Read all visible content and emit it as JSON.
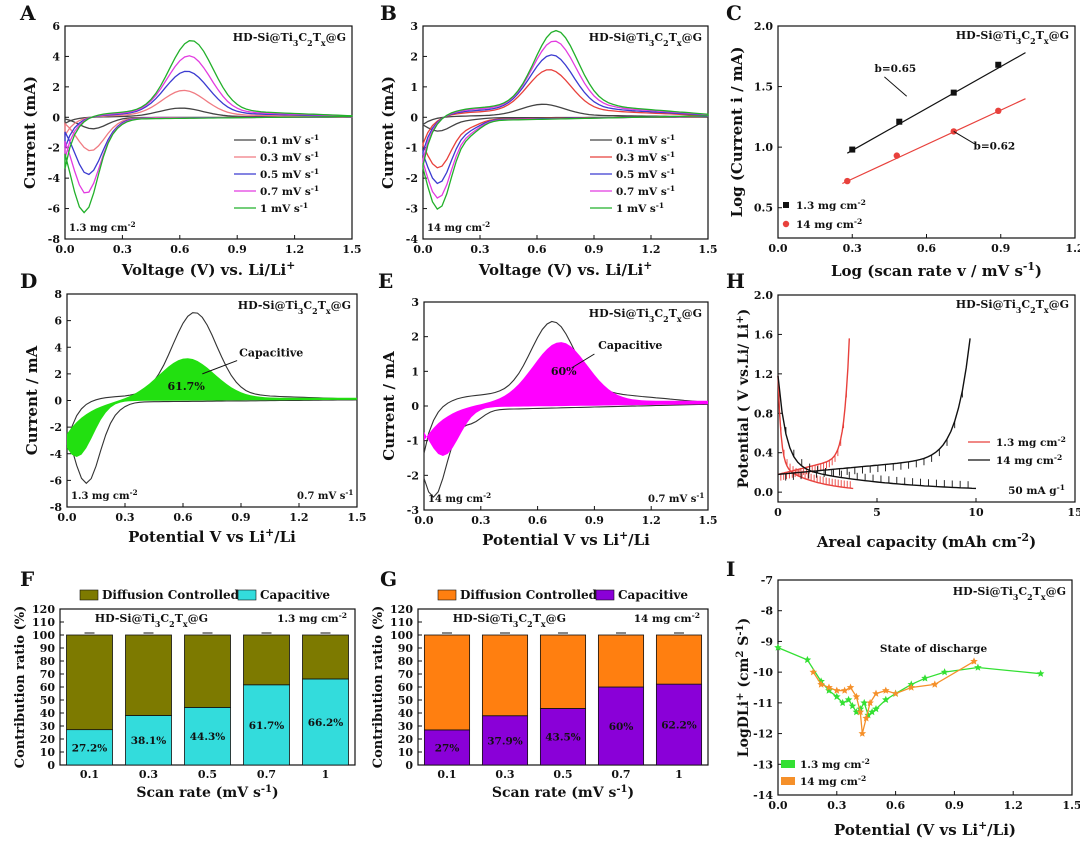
{
  "panel_letters": [
    "A",
    "B",
    "C",
    "D",
    "E",
    "H",
    "F",
    "G",
    "I"
  ],
  "colors": {
    "black": "#333333",
    "red": "#e8413c",
    "gray": "#444444",
    "pink": "#f07b82",
    "blue": "#3b3bd0",
    "magenta": "#e23be0",
    "green": "#22b02a",
    "fill_green": "#22e010",
    "fill_magenta": "#ff00ff",
    "olive": "#7d7a00",
    "cyan": "#33dcdc",
    "orange": "#ff7f10",
    "purple": "#8a00d8",
    "lime": "#33e033",
    "orange2": "#f5902a"
  },
  "chart_data": [
    {
      "id": "A",
      "type": "line",
      "title": "HD-Si@Ti3C2Tx@G",
      "annotation": "1.3 mg cm-2",
      "xlabel": "Voltage (V) vs. Li/Li+",
      "ylabel": "Current (mA)",
      "xlim": [
        0,
        1.5
      ],
      "ylim": [
        -8,
        6
      ],
      "xticks": [
        0.0,
        0.3,
        0.6,
        0.9,
        1.2,
        1.5
      ],
      "yticks": [
        -8,
        -6,
        -4,
        -2,
        0,
        2,
        4,
        6
      ],
      "xtick_labels": [
        "0.0",
        "0.3",
        "0.6",
        "0.9",
        "1.2",
        "1.5"
      ],
      "ytick_labels": [
        "-8",
        "-6",
        "-4",
        "-2",
        "0",
        "2",
        "4",
        "6"
      ],
      "series": [
        {
          "name": "0.1 mV s-1",
          "color": "#444444",
          "scale": 0.12
        },
        {
          "name": "0.3 mV s-1",
          "color": "#f07b82",
          "scale": 0.35
        },
        {
          "name": "0.5 mV s-1",
          "color": "#3b3bd0",
          "scale": 0.6
        },
        {
          "name": "0.7 mV s-1",
          "color": "#e23be0",
          "scale": 0.8
        },
        {
          "name": "1 mV s-1",
          "color": "#22b02a",
          "scale": 1.0
        }
      ],
      "peak_anodic": [
        0.65,
        4.7
      ],
      "peak_cathodic": [
        0.02,
        -6.8
      ]
    },
    {
      "id": "B",
      "type": "line",
      "title": "HD-Si@Ti3C2Tx@G",
      "annotation": "14 mg cm-2",
      "xlabel": "Voltage (V) vs. Li/Li+",
      "ylabel": "Current (mA)",
      "xlim": [
        0,
        1.5
      ],
      "ylim": [
        -4,
        3
      ],
      "xticks": [
        0.0,
        0.3,
        0.6,
        0.9,
        1.2,
        1.5
      ],
      "yticks": [
        -4,
        -3,
        -2,
        -1,
        0,
        1,
        2,
        3
      ],
      "xtick_labels": [
        "0.0",
        "0.3",
        "0.6",
        "0.9",
        "1.2",
        "1.5"
      ],
      "ytick_labels": [
        "-4",
        "-3",
        "-2",
        "-1",
        "0",
        "1",
        "2",
        "3"
      ],
      "series": [
        {
          "name": "0.1 mV s-1",
          "color": "#444444",
          "scale": 0.15
        },
        {
          "name": "0.3 mV s-1",
          "color": "#e8413c",
          "scale": 0.55
        },
        {
          "name": "0.5 mV s-1",
          "color": "#3b3bd0",
          "scale": 0.72
        },
        {
          "name": "0.7 mV s-1",
          "color": "#e23be0",
          "scale": 0.88
        },
        {
          "name": "1 mV s-1",
          "color": "#22b02a",
          "scale": 1.0
        }
      ],
      "peak_anodic": [
        0.7,
        2.5
      ],
      "peak_cathodic": [
        0.05,
        -3.2
      ]
    },
    {
      "id": "C",
      "type": "scatter",
      "title": "HD-Si@Ti3C2Tx@G",
      "xlabel": "Log (scan rate v / mV s-1)",
      "ylabel": "Log (Current i / mA)",
      "xlim": [
        0,
        1.2
      ],
      "ylim": [
        0.25,
        2.0
      ],
      "xticks": [
        0.0,
        0.3,
        0.6,
        0.9,
        1.2
      ],
      "yticks": [
        0.5,
        1.0,
        1.5,
        2.0
      ],
      "xtick_labels": [
        "0.0",
        "0.3",
        "0.6",
        "0.9",
        "1.2"
      ],
      "ytick_labels": [
        "0.5",
        "1.0",
        "1.5",
        "2.0"
      ],
      "series": [
        {
          "name": "1.3 mg cm-2",
          "color": "#111111",
          "x": [
            0.3,
            0.49,
            0.71,
            0.89
          ],
          "y": [
            0.98,
            1.21,
            1.45,
            1.68
          ],
          "fit": {
            "x0": 0.28,
            "x1": 1.0,
            "y0": 0.95,
            "y1": 1.78
          },
          "slope_label": "b=0.65"
        },
        {
          "name": "14 mg cm-2",
          "color": "#e8413c",
          "x": [
            0.28,
            0.48,
            0.71,
            0.89
          ],
          "y": [
            0.72,
            0.93,
            1.13,
            1.3
          ],
          "fit": {
            "x0": 0.26,
            "x1": 1.0,
            "y0": 0.7,
            "y1": 1.4
          },
          "slope_label": "b=0.62"
        }
      ]
    },
    {
      "id": "D",
      "type": "area",
      "title": "HD-Si@Ti3C2Tx@G",
      "annotation": "1.3 mg cm-2",
      "rate_label": "0.7 mV s-1",
      "xlabel": "Potential V vs Li+/Li",
      "ylabel": "Current / mA",
      "xlim": [
        0,
        1.5
      ],
      "ylim": [
        -8,
        8
      ],
      "xticks": [
        0.0,
        0.3,
        0.6,
        0.9,
        1.2,
        1.5
      ],
      "yticks": [
        -8,
        -6,
        -4,
        -2,
        0,
        2,
        4,
        6,
        8
      ],
      "xtick_labels": [
        "0.0",
        "0.3",
        "0.6",
        "0.9",
        "1.2",
        "1.5"
      ],
      "ytick_labels": [
        "-8",
        "-6",
        "-4",
        "-2",
        "0",
        "2",
        "4",
        "6",
        "8"
      ],
      "fill_label": "61.7%",
      "arrow_label": "Capacitive",
      "peak_anodic": [
        0.66,
        6.6
      ],
      "fill_peak": [
        0.62,
        3.0
      ],
      "cathodic_min": [
        0.1,
        -6.6
      ]
    },
    {
      "id": "E",
      "type": "area",
      "title": "HD-Si@Ti3C2Tx@G",
      "annotation": "14 mg cm-2",
      "rate_label": "0.7 mV s-1",
      "xlabel": "Potential V vs Li+/Li",
      "ylabel": "Current / mA",
      "xlim": [
        0,
        1.5
      ],
      "ylim": [
        -3,
        3
      ],
      "xticks": [
        0.0,
        0.3,
        0.6,
        0.9,
        1.2,
        1.5
      ],
      "yticks": [
        -3,
        -2,
        -1,
        0,
        1,
        2,
        3
      ],
      "xtick_labels": [
        "0.0",
        "0.3",
        "0.6",
        "0.9",
        "1.2",
        "1.5"
      ],
      "ytick_labels": [
        "-3",
        "-2",
        "-1",
        "0",
        "1",
        "2",
        "3"
      ],
      "fill_label": "60%",
      "arrow_label": "Capacitive",
      "peak_anodic": [
        0.68,
        2.2
      ],
      "fill_peak": [
        0.72,
        1.7
      ],
      "cathodic_min": [
        0.05,
        -2.7
      ]
    },
    {
      "id": "H",
      "type": "line",
      "title": "HD-Si@Ti3C2Tx@G",
      "rate_label": "50 mA g-1",
      "xlabel": "Areal capacity (mAh cm-2)",
      "ylabel": "Potential ( V vs.Li/ Li+)",
      "xlim": [
        0,
        15
      ],
      "ylim": [
        -0.1,
        2.0
      ],
      "xticks": [
        0,
        5,
        10,
        15
      ],
      "yticks": [
        0.0,
        0.4,
        0.8,
        1.2,
        1.6,
        2.0
      ],
      "xtick_labels": [
        "0",
        "5",
        "10",
        "15"
      ],
      "ytick_labels": [
        "0.0",
        "0.4",
        "0.8",
        "1.2",
        "1.6",
        "2.0"
      ],
      "series": [
        {
          "name": "1.3 mg cm-2",
          "color": "#e8413c",
          "discharge_end": 3.8,
          "charge_end": 3.6
        },
        {
          "name": "14 mg cm-2",
          "color": "#111111",
          "discharge_end": 10.0,
          "charge_end": 9.7
        }
      ]
    },
    {
      "id": "F",
      "type": "bar",
      "title": "HD-Si@Ti3C2Tx@G",
      "annotation": "1.3 mg cm-2",
      "xlabel": "Scan rate (mV s-1)",
      "ylabel": "Contribution ratio (%)",
      "ylim": [
        0,
        120
      ],
      "yticks": [
        0,
        10,
        20,
        30,
        40,
        50,
        60,
        70,
        80,
        90,
        100,
        110,
        120
      ],
      "categories": [
        "0.1",
        "0.3",
        "0.5",
        "0.7",
        "1"
      ],
      "series": [
        {
          "name": "Capacitive",
          "color": "#33dcdc",
          "values": [
            27.2,
            38.1,
            44.3,
            61.7,
            66.2
          ]
        },
        {
          "name": "Diffusion Controlled",
          "color": "#7d7a00",
          "values": [
            72.8,
            61.9,
            55.7,
            38.3,
            33.8
          ]
        }
      ],
      "value_labels": [
        "27.2%",
        "38.1%",
        "44.3%",
        "61.7%",
        "66.2%"
      ],
      "legend": [
        "Diffusion Controlled",
        "Capacitive"
      ]
    },
    {
      "id": "G",
      "type": "bar",
      "title": "HD-Si@Ti3C2Tx@G",
      "annotation": "14 mg cm-2",
      "xlabel": "Scan rate (mV s-1)",
      "ylabel": "Contribution ratio (%)",
      "ylim": [
        0,
        120
      ],
      "yticks": [
        0,
        10,
        20,
        30,
        40,
        50,
        60,
        70,
        80,
        90,
        100,
        110,
        120
      ],
      "categories": [
        "0.1",
        "0.3",
        "0.5",
        "0.7",
        "1"
      ],
      "series": [
        {
          "name": "Capacitive",
          "color": "#8a00d8",
          "values": [
            27,
            37.9,
            43.5,
            60,
            62.2
          ]
        },
        {
          "name": "Diffusion Controlled",
          "color": "#ff7f10",
          "values": [
            73,
            62.1,
            56.5,
            40,
            37.8
          ]
        }
      ],
      "value_labels": [
        "27%",
        "37.9%",
        "43.5%",
        "60%",
        "62.2%"
      ],
      "legend": [
        "Diffusion Controlled",
        "Capacitive"
      ]
    },
    {
      "id": "I",
      "type": "scatter",
      "title": "HD-Si@Ti3C2Tx@G",
      "annotation": "State of discharge",
      "xlabel": "Potential (V vs Li+/Li)",
      "ylabel": "LogDLi+ (cm2 S-1)",
      "xlim": [
        0,
        1.5
      ],
      "ylim": [
        -14,
        -7
      ],
      "xticks": [
        0.0,
        0.3,
        0.6,
        0.9,
        1.2,
        1.5
      ],
      "yticks": [
        -14,
        -13,
        -12,
        -11,
        -10,
        -9,
        -8,
        -7
      ],
      "xtick_labels": [
        "0.0",
        "0.3",
        "0.6",
        "0.9",
        "1.2",
        "1.5"
      ],
      "ytick_labels": [
        "-14",
        "-13",
        "-12",
        "-11",
        "-10",
        "-9",
        "-8",
        "-7"
      ],
      "series": [
        {
          "name": "1.3 mg cm-2",
          "color": "#33e033",
          "x": [
            0.0,
            0.15,
            0.22,
            0.26,
            0.3,
            0.33,
            0.36,
            0.38,
            0.4,
            0.42,
            0.44,
            0.46,
            0.48,
            0.5,
            0.55,
            0.6,
            0.68,
            0.75,
            0.85,
            1.02,
            1.34
          ],
          "y": [
            -9.2,
            -9.6,
            -10.3,
            -10.6,
            -10.8,
            -11.0,
            -10.9,
            -11.1,
            -11.3,
            -11.2,
            -11.0,
            -11.4,
            -11.3,
            -11.2,
            -10.9,
            -10.7,
            -10.4,
            -10.2,
            -10.0,
            -9.85,
            -10.05
          ]
        },
        {
          "name": "14 mg cm-2",
          "color": "#f5902a",
          "x": [
            0.18,
            0.22,
            0.26,
            0.3,
            0.34,
            0.37,
            0.4,
            0.42,
            0.43,
            0.45,
            0.47,
            0.5,
            0.55,
            0.6,
            0.68,
            0.8,
            1.0
          ],
          "y": [
            -10.0,
            -10.4,
            -10.5,
            -10.6,
            -10.6,
            -10.5,
            -10.8,
            -11.3,
            -12.0,
            -11.5,
            -11.0,
            -10.7,
            -10.6,
            -10.7,
            -10.5,
            -10.4,
            -9.65
          ]
        }
      ]
    }
  ]
}
